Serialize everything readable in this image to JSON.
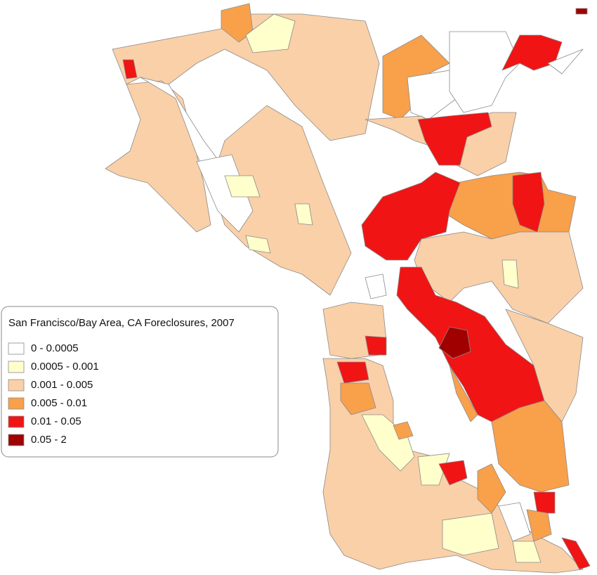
{
  "legend": {
    "title": "San Francisco/Bay Area, CA Foreclosures, 2007",
    "items": [
      {
        "label": "0 - 0.0005",
        "color": "#ffffff"
      },
      {
        "label": "0.0005 - 0.001",
        "color": "#ffffcc"
      },
      {
        "label": "0.001 - 0.005",
        "color": "#fad0a8"
      },
      {
        "label": "0.005 - 0.01",
        "color": "#f9a04a"
      },
      {
        "label": "0.01 - 0.05",
        "color": "#f01414"
      },
      {
        "label": "0.05 - 2",
        "color": "#a00000"
      }
    ]
  }
}
